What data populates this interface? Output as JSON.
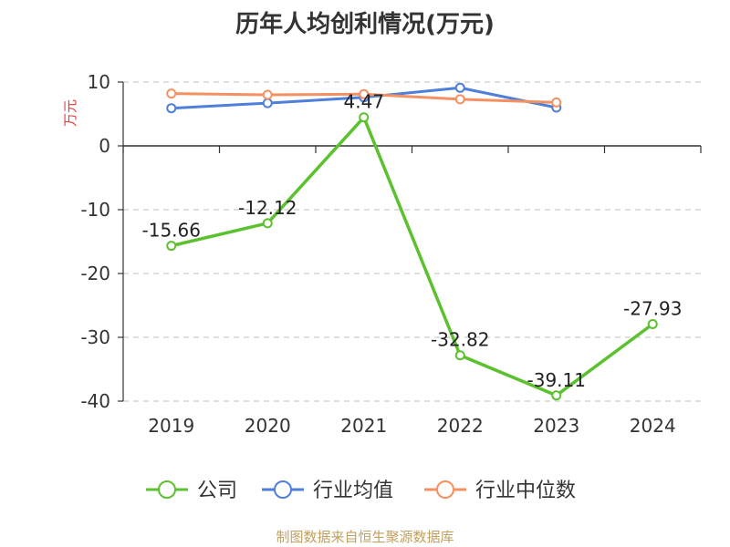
{
  "chart_data": {
    "type": "line",
    "title": "历年人均创利情况(万元)",
    "ylabel": "万元",
    "xlabel": "",
    "categories": [
      "2019",
      "2020",
      "2021",
      "2022",
      "2023",
      "2024"
    ],
    "ylim": [
      -40,
      10
    ],
    "yticks": [
      10,
      0,
      -10,
      -20,
      -30,
      -40
    ],
    "grid": true,
    "legend_position": "bottom",
    "series": [
      {
        "name": "公司",
        "color": "#5cc12f",
        "values": [
          -15.66,
          -12.12,
          4.47,
          -32.82,
          -39.11,
          -27.93
        ],
        "labels": [
          "-15.66",
          "-12.12",
          "4.47",
          "-32.82",
          "-39.11",
          "-27.93"
        ]
      },
      {
        "name": "行业均值",
        "color": "#4e7fdb",
        "values": [
          5.9,
          6.7,
          7.6,
          9.1,
          6.0,
          null
        ]
      },
      {
        "name": "行业中位数",
        "color": "#f59160",
        "values": [
          8.2,
          8.0,
          8.1,
          7.3,
          6.8,
          null
        ]
      }
    ]
  },
  "source": "制图数据来自恒生聚源数据库"
}
